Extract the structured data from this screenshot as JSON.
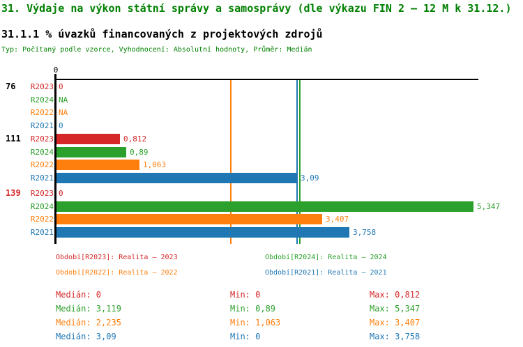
{
  "header": {
    "title": "31. Výdaje na výkon státní správy a samosprávy (dle výkazu FIN 2 – 12 M k 31.12.)",
    "subtitle": "31.1.1 % úvazků financovaných z projektových zdrojů",
    "meta": "Typ: Počítaný podle vzorce, Vyhodnocení: Absolutní hodnoty, Průměr: Medián"
  },
  "colors": {
    "title_green": "#008000",
    "black": "#000000",
    "red": "#d62728",
    "green": "#2ca02c",
    "orange": "#ff7f0e",
    "blue": "#1f77b4",
    "group_highlight": "#d62728"
  },
  "chart_data": {
    "type": "bar",
    "orientation": "horizontal",
    "title": "31.1.1 % úvazků financovaných z projektových zdrojů",
    "xlim": [
      0,
      5.9
    ],
    "axis_tick_label": "0",
    "grid": false,
    "series_colors": {
      "R2023": "#d62728",
      "R2024": "#2ca02c",
      "R2022": "#ff7f0e",
      "R2021": "#1f77b4"
    },
    "groups": [
      {
        "label": "76",
        "label_color": "#000000",
        "rows": [
          {
            "series": "R2023",
            "value": 0,
            "display": "0"
          },
          {
            "series": "R2024",
            "value": null,
            "display": "NA"
          },
          {
            "series": "R2022",
            "value": null,
            "display": "NA"
          },
          {
            "series": "R2021",
            "value": 0,
            "display": "0"
          }
        ]
      },
      {
        "label": "111",
        "label_color": "#000000",
        "rows": [
          {
            "series": "R2023",
            "value": 0.812,
            "display": "0,812"
          },
          {
            "series": "R2024",
            "value": 0.89,
            "display": "0,89"
          },
          {
            "series": "R2022",
            "value": 1.063,
            "display": "1,063"
          },
          {
            "series": "R2021",
            "value": 3.09,
            "display": "3,09"
          }
        ]
      },
      {
        "label": "139",
        "label_color": "#d62728",
        "rows": [
          {
            "series": "R2023",
            "value": 0,
            "display": "0"
          },
          {
            "series": "R2024",
            "value": 5.347,
            "display": "5,347"
          },
          {
            "series": "R2022",
            "value": 3.407,
            "display": "3,407"
          },
          {
            "series": "R2021",
            "value": 3.758,
            "display": "3,758"
          }
        ]
      }
    ],
    "median_lines": [
      {
        "series": "R2022",
        "value": 2.235,
        "color": "#ff7f0e"
      },
      {
        "series": "R2021",
        "value": 3.09,
        "color": "#1f77b4"
      },
      {
        "series": "R2024",
        "value": 3.119,
        "color": "#2ca02c"
      }
    ]
  },
  "legend": [
    {
      "label": "Období[R2023]: Realita – 2023",
      "color": "#d62728"
    },
    {
      "label": "Období[R2024]: Realita – 2024",
      "color": "#2ca02c"
    },
    {
      "label": "Období[R2022]: Realita – 2022",
      "color": "#ff7f0e"
    },
    {
      "label": "Období[R2021]: Realita – 2021",
      "color": "#1f77b4"
    }
  ],
  "stats": [
    {
      "median": "Medián: 0",
      "min": "Min: 0",
      "max": "Max: 0,812",
      "color": "#d62728"
    },
    {
      "median": "Medián: 3,119",
      "min": "Min: 0,89",
      "max": "Max: 5,347",
      "color": "#2ca02c"
    },
    {
      "median": "Medián: 2,235",
      "min": "Min: 1,063",
      "max": "Max: 3,407",
      "color": "#ff7f0e"
    },
    {
      "median": "Medián: 3,09",
      "min": "Min: 0",
      "max": "Max: 3,758",
      "color": "#1f77b4"
    }
  ]
}
